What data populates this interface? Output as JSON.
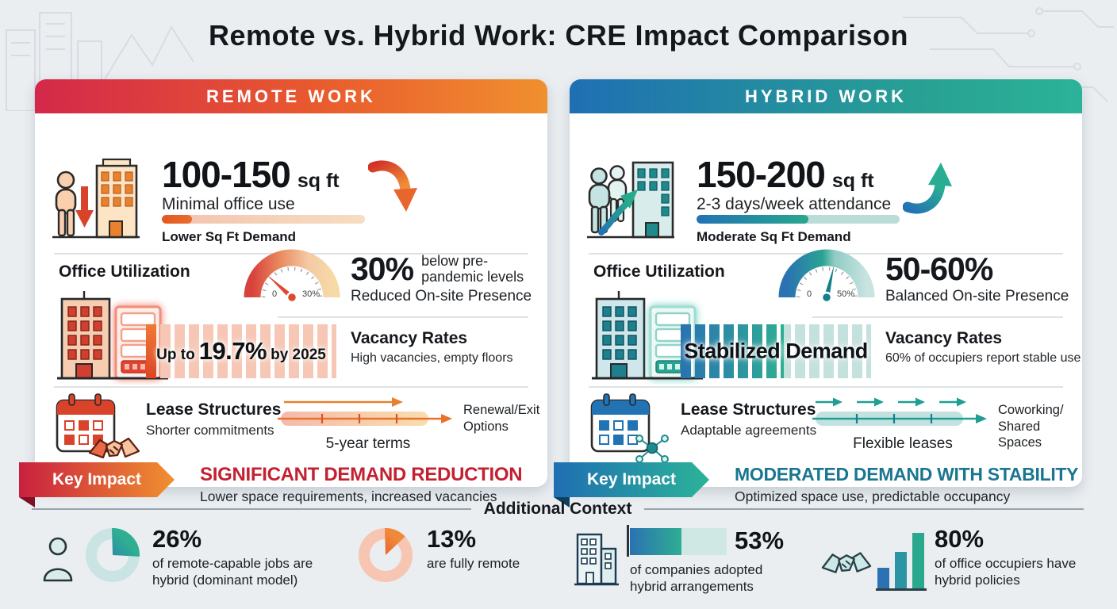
{
  "page_title": "Remote vs. Hybrid Work: CRE Impact Comparison",
  "colors": {
    "remote_gradient_start": "#d3284a",
    "remote_gradient_end": "#f0902f",
    "hybrid_gradient_start": "#1f6fb2",
    "hybrid_gradient_end": "#2bb398",
    "remote_headline": "#c32031",
    "hybrid_headline": "#1a7690"
  },
  "remote": {
    "header": "REMOTE WORK",
    "space": {
      "value": "100-150",
      "unit": "sq ft",
      "desc": "Minimal office use",
      "bar_label": "Lower Sq Ft Demand",
      "fill_percent": 15,
      "trend": "down"
    },
    "utilization": {
      "label": "Office Utilization",
      "gauge_min": "0",
      "gauge_max": "30%",
      "stat": "30%",
      "stat_side": "below pre-\npandemic levels",
      "stat_sub": "Reduced On-site Presence"
    },
    "vacancy": {
      "bar_prefix": "Up to",
      "bar_value": "19.7%",
      "bar_suffix": "by 2025",
      "label": "Vacancy Rates",
      "desc": "High vacancies, empty floors"
    },
    "lease": {
      "label": "Lease Structures",
      "desc": "Shorter commitments",
      "timeline_label": "5-year terms",
      "note": "Renewal/Exit\nOptions"
    },
    "impact": {
      "badge": "Key Impact",
      "headline": "SIGNIFICANT DEMAND REDUCTION",
      "sub": "Lower space requirements, increased vacancies"
    }
  },
  "hybrid": {
    "header": "HYBRID WORK",
    "space": {
      "value": "150-200",
      "unit": "sq ft",
      "desc": "2-3 days/week attendance",
      "bar_label": "Moderate Sq Ft Demand",
      "fill_percent": 55,
      "trend": "up"
    },
    "utilization": {
      "label": "Office Utilization",
      "gauge_min": "0",
      "gauge_max": "50%",
      "stat": "50-60%",
      "stat_side": "",
      "stat_sub": "Balanced On-site Presence"
    },
    "vacancy": {
      "bar_prefix": "",
      "bar_value": "Stabilized Demand",
      "bar_suffix": "",
      "label": "Vacancy Rates",
      "desc": "60% of occupiers report stable use"
    },
    "lease": {
      "label": "Lease Structures",
      "desc": "Adaptable agreements",
      "timeline_label": "Flexible leases",
      "note": "Coworking/\nShared Spaces"
    },
    "impact": {
      "badge": "Key Impact",
      "headline": "MODERATED DEMAND WITH STABILITY",
      "sub": "Optimized space use, predictable occupancy"
    }
  },
  "additional": {
    "title": "Additional Context",
    "stats": [
      {
        "value": "26%",
        "desc": "of remote-capable jobs are hybrid (dominant model)",
        "percent": 26
      },
      {
        "value": "13%",
        "desc": "are fully remote",
        "percent": 13
      },
      {
        "value": "53%",
        "desc": "of companies adopted hybrid arrangements",
        "percent": 53
      },
      {
        "value": "80%",
        "desc": "of office occupiers have hybrid policies",
        "percent": 80
      }
    ]
  },
  "chart_data": [
    {
      "type": "gauge",
      "section": "remote-office-utilization",
      "value_label": "30%",
      "scale_min": "0",
      "scale_max": "30%",
      "note": "below pre-pandemic levels"
    },
    {
      "type": "gauge",
      "section": "hybrid-office-utilization",
      "value_label": "50-60%",
      "scale_min": "0",
      "scale_max": "50%",
      "note": "Balanced On-site Presence"
    },
    {
      "type": "pie",
      "label": "remote-capable jobs that are hybrid",
      "value": 26
    },
    {
      "type": "pie",
      "label": "fully remote jobs",
      "value": 13
    },
    {
      "type": "bar",
      "label": "companies adopted hybrid arrangements",
      "value": 53
    },
    {
      "type": "bar",
      "label": "office occupiers with hybrid policies",
      "value": 80
    }
  ]
}
